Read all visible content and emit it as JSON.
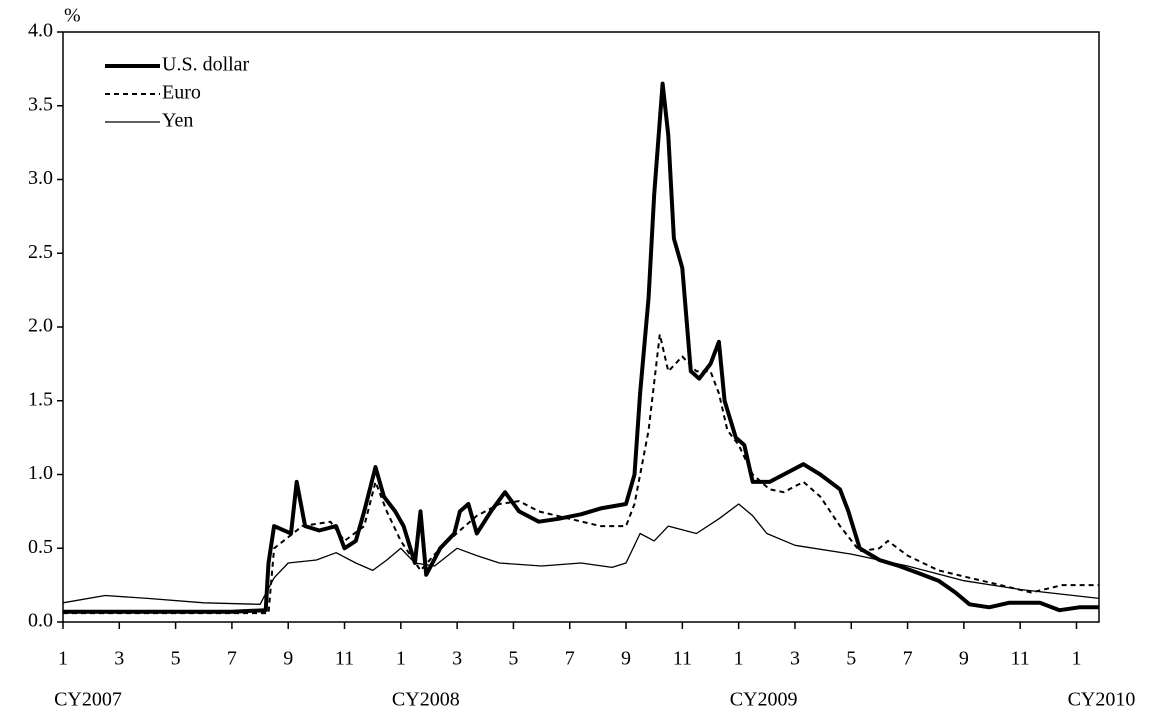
{
  "chart_data": {
    "type": "line",
    "y_label": "%",
    "xlim": [
      0,
      36.8
    ],
    "xticks": [
      {
        "value": 0,
        "label": "1"
      },
      {
        "value": 2,
        "label": "3"
      },
      {
        "value": 4,
        "label": "5"
      },
      {
        "value": 6,
        "label": "7"
      },
      {
        "value": 8,
        "label": "9"
      },
      {
        "value": 10,
        "label": "11"
      },
      {
        "value": 12,
        "label": "1"
      },
      {
        "value": 14,
        "label": "3"
      },
      {
        "value": 16,
        "label": "5"
      },
      {
        "value": 18,
        "label": "7"
      },
      {
        "value": 20,
        "label": "9"
      },
      {
        "value": 22,
        "label": "11"
      },
      {
        "value": 24,
        "label": "1"
      },
      {
        "value": 26,
        "label": "3"
      },
      {
        "value": 28,
        "label": "5"
      },
      {
        "value": 30,
        "label": "7"
      },
      {
        "value": 32,
        "label": "9"
      },
      {
        "value": 34,
        "label": "11"
      },
      {
        "value": 36,
        "label": "1"
      }
    ],
    "year_labels": [
      {
        "value": 0,
        "label": "CY2007"
      },
      {
        "value": 12,
        "label": "CY2008"
      },
      {
        "value": 24,
        "label": "CY2009"
      },
      {
        "value": 36,
        "label": "CY2010"
      }
    ],
    "ylim": [
      0,
      4
    ],
    "yticks": [
      {
        "value": 0,
        "label": "0.0"
      },
      {
        "value": 0.5,
        "label": "0.5"
      },
      {
        "value": 1,
        "label": "1.0"
      },
      {
        "value": 1.5,
        "label": "1.5"
      },
      {
        "value": 2,
        "label": "2.0"
      },
      {
        "value": 2.5,
        "label": "2.5"
      },
      {
        "value": 3,
        "label": "3.0"
      },
      {
        "value": 3.5,
        "label": "3.5"
      },
      {
        "value": 4,
        "label": "4.0"
      }
    ],
    "legend": "top-left",
    "series": [
      {
        "name": "U.S. dollar",
        "color": "#000000",
        "line_style": "solid",
        "line_width": 4,
        "x": [
          0,
          2,
          4,
          6,
          7.2,
          7.3,
          7.5,
          8.1,
          8.3,
          8.6,
          9.1,
          9.7,
          10.0,
          10.4,
          10.7,
          11.1,
          11.4,
          11.8,
          12.1,
          12.5,
          12.7,
          12.9,
          13.4,
          13.9,
          14.1,
          14.4,
          14.7,
          15.2,
          15.7,
          16.2,
          16.9,
          17.6,
          18.4,
          19.1,
          20.0,
          20.3,
          20.5,
          20.8,
          21.0,
          21.3,
          21.5,
          21.7,
          22.0,
          22.3,
          22.6,
          23.0,
          23.3,
          23.5,
          23.9,
          24.2,
          24.5,
          25.1,
          25.6,
          26.3,
          26.9,
          27.6,
          27.9,
          28.3,
          29.0,
          29.7,
          30.4,
          31.1,
          31.7,
          32.2,
          32.9,
          33.6,
          34.7,
          35.4,
          36.1,
          36.8
        ],
        "values": [
          0.07,
          0.07,
          0.07,
          0.07,
          0.08,
          0.4,
          0.65,
          0.6,
          0.95,
          0.65,
          0.62,
          0.65,
          0.5,
          0.55,
          0.75,
          1.05,
          0.85,
          0.75,
          0.65,
          0.4,
          0.75,
          0.32,
          0.5,
          0.6,
          0.75,
          0.8,
          0.6,
          0.75,
          0.88,
          0.75,
          0.68,
          0.7,
          0.73,
          0.77,
          0.8,
          1.0,
          1.55,
          2.2,
          2.9,
          3.65,
          3.3,
          2.6,
          2.4,
          1.7,
          1.65,
          1.75,
          1.9,
          1.5,
          1.25,
          1.2,
          0.95,
          0.95,
          1.0,
          1.07,
          1.0,
          0.9,
          0.75,
          0.5,
          0.42,
          0.38,
          0.33,
          0.28,
          0.2,
          0.12,
          0.1,
          0.13,
          0.13,
          0.08,
          0.1,
          0.1
        ]
      },
      {
        "name": "Euro",
        "color": "#000000",
        "line_style": "dashed",
        "line_width": 2,
        "x": [
          0,
          3,
          7.3,
          7.5,
          8.5,
          9.5,
          10.0,
          10.7,
          11.1,
          11.5,
          12.0,
          12.7,
          13.4,
          14.1,
          14.7,
          15.5,
          16.2,
          16.9,
          18.0,
          19.1,
          20.0,
          20.3,
          20.8,
          21.2,
          21.5,
          22.0,
          22.5,
          23.0,
          23.3,
          23.6,
          24.0,
          24.5,
          25.1,
          25.6,
          26.3,
          26.9,
          27.6,
          28.3,
          29.0,
          29.3,
          30.0,
          31.1,
          32.2,
          33.3,
          34.4,
          35.5,
          36.8
        ],
        "values": [
          0.06,
          0.06,
          0.06,
          0.5,
          0.65,
          0.68,
          0.55,
          0.65,
          0.95,
          0.75,
          0.55,
          0.35,
          0.5,
          0.62,
          0.72,
          0.8,
          0.82,
          0.75,
          0.7,
          0.65,
          0.65,
          0.8,
          1.3,
          1.95,
          1.7,
          1.8,
          1.7,
          1.7,
          1.55,
          1.3,
          1.2,
          1.0,
          0.9,
          0.88,
          0.95,
          0.85,
          0.65,
          0.48,
          0.5,
          0.55,
          0.45,
          0.35,
          0.3,
          0.25,
          0.2,
          0.25,
          0.25
        ]
      },
      {
        "name": "Yen",
        "color": "#000000",
        "line_style": "solid",
        "line_width": 1.3,
        "x": [
          0,
          1.5,
          3.0,
          5,
          7,
          7.5,
          8.0,
          9.0,
          9.7,
          10.4,
          11.0,
          11.5,
          12.0,
          12.5,
          13.2,
          14.0,
          14.7,
          15.5,
          17.0,
          18.4,
          19.5,
          20.0,
          20.5,
          21.0,
          21.5,
          22.5,
          23.3,
          24.0,
          24.5,
          25.0,
          26.0,
          28.0,
          30.0,
          32.0,
          34.0,
          36.8
        ],
        "values": [
          0.13,
          0.18,
          0.16,
          0.13,
          0.12,
          0.3,
          0.4,
          0.42,
          0.47,
          0.4,
          0.35,
          0.42,
          0.5,
          0.4,
          0.38,
          0.5,
          0.45,
          0.4,
          0.38,
          0.4,
          0.37,
          0.4,
          0.6,
          0.55,
          0.65,
          0.6,
          0.7,
          0.8,
          0.72,
          0.6,
          0.52,
          0.46,
          0.38,
          0.28,
          0.22,
          0.16
        ]
      }
    ]
  }
}
